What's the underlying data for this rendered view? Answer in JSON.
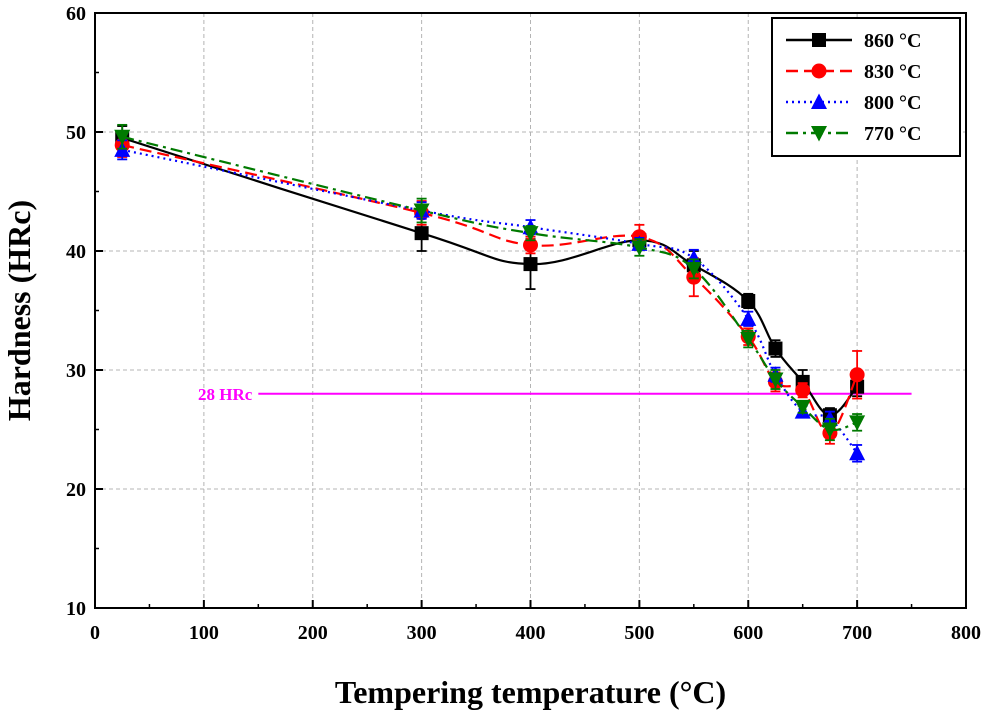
{
  "chart_data": {
    "type": "line",
    "xlabel": "Tempering temperature (°C)",
    "ylabel": "Hardness (HRc)",
    "xlim": [
      0,
      800
    ],
    "ylim": [
      10,
      60
    ],
    "xticks": [
      0,
      100,
      200,
      300,
      400,
      500,
      600,
      700,
      800
    ],
    "yticks": [
      10,
      20,
      30,
      40,
      50,
      60
    ],
    "grid": "dashed",
    "legend_position": "top-right",
    "reference_line": {
      "label": "28 HRc",
      "y": 28,
      "x_range": [
        150,
        750
      ],
      "color": "#ff00ff"
    },
    "series": [
      {
        "name": "860 °C",
        "color": "#000000",
        "marker": "square",
        "line": "solid",
        "x": [
          25,
          300,
          400,
          500,
          550,
          600,
          625,
          650,
          675,
          700
        ],
        "y": [
          49.5,
          41.5,
          38.9,
          40.9,
          38.8,
          35.8,
          31.8,
          29.0,
          26.2,
          28.6
        ],
        "err": [
          1.0,
          1.5,
          2.1,
          0.6,
          1.2,
          0.6,
          0.7,
          1.0,
          0.6,
          0.8
        ]
      },
      {
        "name": "830 °C",
        "color": "#ff0000",
        "marker": "circle",
        "line": "dashed",
        "x": [
          25,
          300,
          400,
          500,
          550,
          600,
          625,
          650,
          675,
          700
        ],
        "y": [
          48.9,
          43.2,
          40.5,
          41.2,
          37.8,
          32.8,
          29.0,
          28.3,
          24.7,
          29.6
        ],
        "err": [
          1.0,
          1.0,
          0.7,
          1.0,
          1.6,
          0.7,
          0.8,
          0.6,
          0.9,
          2.0
        ]
      },
      {
        "name": "800 °C",
        "color": "#0000ff",
        "marker": "triangle-up",
        "line": "dotted",
        "x": [
          25,
          300,
          400,
          500,
          550,
          600,
          625,
          650,
          675,
          700
        ],
        "y": [
          48.5,
          43.4,
          42.0,
          40.6,
          39.4,
          34.3,
          29.6,
          26.5,
          25.9,
          23.0
        ],
        "err": [
          0.8,
          0.7,
          0.6,
          0.5,
          0.7,
          0.6,
          0.6,
          0.5,
          0.6,
          0.7
        ]
      },
      {
        "name": "770 °C",
        "color": "#007a00",
        "marker": "triangle-down",
        "line": "dashdot",
        "x": [
          25,
          300,
          400,
          500,
          550,
          600,
          625,
          650,
          675,
          700
        ],
        "y": [
          49.6,
          43.4,
          41.5,
          40.3,
          38.5,
          32.6,
          29.2,
          26.9,
          25.0,
          25.6
        ],
        "err": [
          1.0,
          1.0,
          0.6,
          0.7,
          0.8,
          0.7,
          0.8,
          0.5,
          0.9,
          0.7
        ]
      }
    ]
  }
}
